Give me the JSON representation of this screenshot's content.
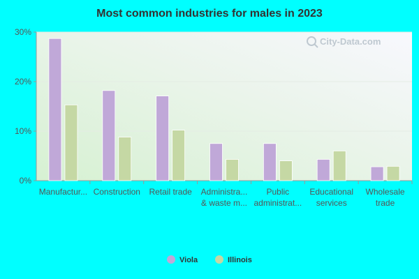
{
  "chart_data": {
    "type": "bar",
    "title": "Most common industries for males in 2023",
    "xlabel": "",
    "ylabel": "",
    "ylim": [
      0,
      30
    ],
    "yticks": [
      "0%",
      "10%",
      "20%",
      "30%"
    ],
    "categories": [
      [
        "Manufactur..."
      ],
      [
        "Construction"
      ],
      [
        "Retail trade"
      ],
      [
        "Administra...",
        "& waste m..."
      ],
      [
        "Public",
        "administrat..."
      ],
      [
        "Educational",
        "services"
      ],
      [
        "Wholesale",
        "trade"
      ]
    ],
    "series": [
      {
        "name": "Viola",
        "values": [
          28.7,
          18.2,
          17.1,
          7.5,
          7.5,
          4.3,
          2.8
        ]
      },
      {
        "name": "Illinois",
        "values": [
          15.3,
          8.8,
          10.2,
          4.3,
          4.0,
          6.0,
          2.9
        ]
      }
    ],
    "grid": true,
    "legend_position": "bottom"
  },
  "colors": {
    "series": [
      "#c0a8d8",
      "#c5d8a4"
    ],
    "background": "#00ffff"
  },
  "watermark": {
    "text": "City-Data.com",
    "icon": "magnifier-icon"
  }
}
